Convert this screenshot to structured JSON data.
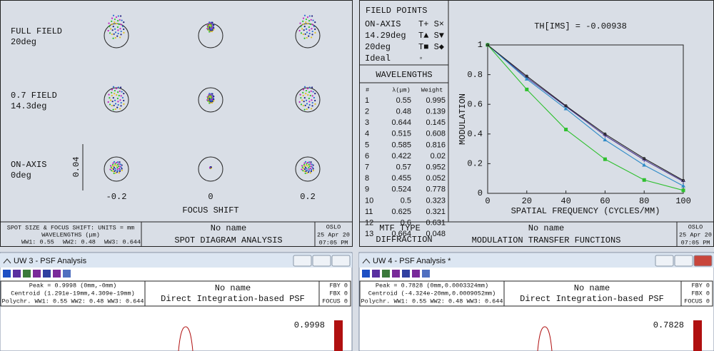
{
  "spot_panel": {
    "field_labels": [
      [
        "FULL FIELD",
        "20deg"
      ],
      [
        "0.7 FIELD",
        "14.3deg"
      ],
      [
        "ON-AXIS",
        "0deg"
      ]
    ],
    "scale_label": "0.04",
    "focus_labels": [
      "-0.2",
      "0",
      "0.2"
    ],
    "axis_label": "FOCUS SHIFT",
    "footer": {
      "info": [
        "SPOT SIZE & FOCUS SHIFT: UNITS = mm",
        "WAVELENGTHS (μm)"
      ],
      "wavelengths": [
        {
          "text": "WW1: 0.55",
          "color": "#1f9a1f"
        },
        {
          "text": "WW2: 0.48",
          "color": "#1d4fc4"
        },
        {
          "text": "WW3: 0.644",
          "color": "#d22020"
        }
      ],
      "name": "No name",
      "title": "SPOT DIAGRAM ANALYSIS",
      "app": "OSLO",
      "date": "25 Apr 20",
      "time": "07:05 PM"
    }
  },
  "field_points": {
    "title": "FIELD POINTS",
    "symbols": [
      "T+ S×",
      "T▲ S▼",
      "T■ S◆",
      "◦"
    ]
  },
  "wavelengths_table": {
    "title": "WAVELENGTHS",
    "header": [
      "#",
      "λ(μm)",
      "Weight"
    ],
    "rows": [
      [
        1,
        0.55,
        0.995
      ],
      [
        2,
        0.48,
        0.139
      ],
      [
        3,
        0.644,
        0.145
      ],
      [
        4,
        0.515,
        0.608
      ],
      [
        5,
        0.585,
        0.816
      ],
      [
        6,
        0.422,
        0.02
      ],
      [
        7,
        0.57,
        0.952
      ],
      [
        8,
        0.455,
        0.052
      ],
      [
        9,
        0.524,
        0.778
      ],
      [
        10,
        0.5,
        0.323
      ],
      [
        11,
        0.625,
        0.321
      ],
      [
        12,
        0.6,
        0.631
      ],
      [
        13,
        0.664,
        0.048
      ]
    ],
    "mtf_type_label": "MTF TYPE",
    "mtf_type": "DIFFRACTION"
  },
  "chart_data": {
    "type": "line",
    "title": "TH[IMS] = -0.00938",
    "x_label": "SPATIAL FREQUENCY (CYCLES/MM)",
    "y_label": "MODULATION",
    "x": [
      0,
      20,
      40,
      60,
      80,
      100
    ],
    "xlim": [
      0,
      100
    ],
    "xticks": [
      0,
      20,
      40,
      60,
      80,
      100
    ],
    "ylim": [
      0,
      1
    ],
    "yticks": [
      0,
      0.2,
      0.4,
      0.6,
      0.8,
      1
    ],
    "series": [
      {
        "name": "ON-AXIS",
        "color": "#4b3590",
        "values": [
          1,
          0.78,
          0.585,
          0.39,
          0.225,
          0.08
        ]
      },
      {
        "name": "14.29deg",
        "color": "#2e8bc8",
        "values": [
          1,
          0.77,
          0.57,
          0.36,
          0.19,
          0.05
        ]
      },
      {
        "name": "20deg",
        "color": "#2fc02f",
        "values": [
          1,
          0.7,
          0.43,
          0.23,
          0.09,
          0.02
        ]
      },
      {
        "name": "Ideal",
        "color": "#222222",
        "values": [
          1,
          0.79,
          0.59,
          0.4,
          0.235,
          0.087
        ]
      }
    ]
  },
  "mtf_footer": {
    "name": "No name",
    "title": "MODULATION TRANSFER FUNCTIONS",
    "app": "OSLO",
    "date": "25 Apr 20",
    "time": "07:05 PM"
  },
  "psf_windows": [
    {
      "window_title": "UW 3 - PSF Analysis",
      "peak": "Peak = 0.9998 (0mm,-0mm)",
      "centroid": "Centroid (1.291e-19mm,4.309e-19mm)",
      "polychr": "Polychr. WW1: 0.55 WW2: 0.48 WW3: 0.644",
      "name": "No name",
      "title": "Direct Integration-based PSF",
      "fby": "FBY 0",
      "fbx": "FBX 0",
      "focus": "FOCUS 0",
      "peak_value": "0.9998"
    },
    {
      "window_title": "UW 4 - PSF Analysis *",
      "peak": "Peak = 0.7828 (0mm,0.0003324mm)",
      "centroid": "Centroid (-4.324e-20mm,0.0009052mm)",
      "polychr": "Polychr. WW1: 0.55 WW2: 0.48 WW3: 0.644",
      "name": "No name",
      "title": "Direct Integration-based PSF",
      "fby": "FBY 0",
      "fbx": "FBX 0",
      "focus": "FOCUS 0",
      "peak_value": "0.7828"
    }
  ]
}
